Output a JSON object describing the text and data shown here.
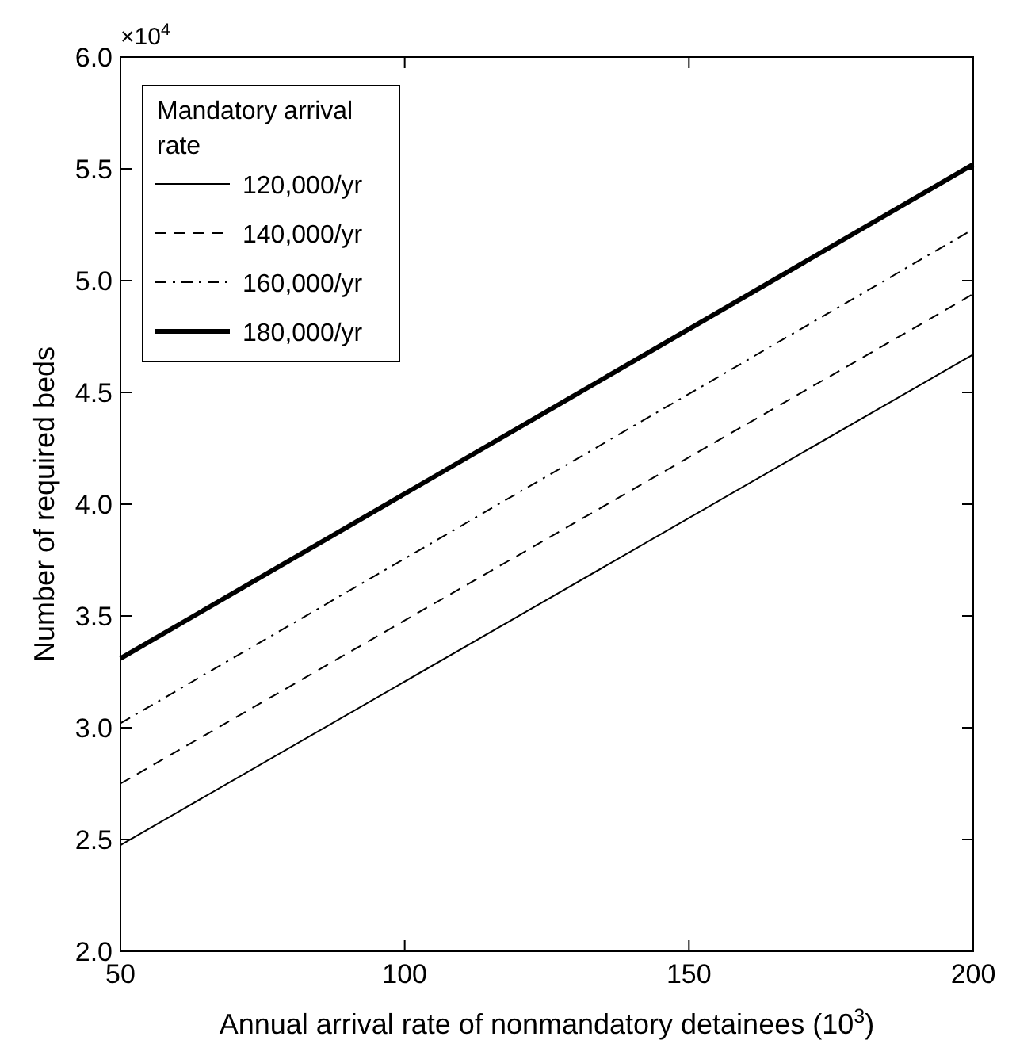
{
  "chart_data": {
    "type": "line",
    "xlabel": "Annual arrival rate of nonmandatory detainees (10$^{3}$)",
    "ylabel": "Number of required beds",
    "annotations": [
      "×10$^{4}$"
    ],
    "legend_title": "Mandatory arrival rate",
    "legend": "top left",
    "grid": false,
    "xlim": [
      50,
      200
    ],
    "xticks": [
      50,
      100,
      150,
      200
    ],
    "ylim": [
      2,
      6
    ],
    "yticks": [
      {
        "value": 2,
        "label": "2.0"
      },
      2.5,
      {
        "value": 3,
        "label": "3.0"
      },
      3.5,
      {
        "value": 4,
        "label": "4.0"
      },
      4.5,
      {
        "value": 5,
        "label": "5.0"
      },
      5.5,
      {
        "value": 6,
        "label": "6.0"
      }
    ],
    "x": [
      50,
      200
    ],
    "series": [
      {
        "name": "120,000/yr",
        "color": "#000000",
        "line_style": "solid",
        "values": [
          2.475,
          4.67
        ]
      },
      {
        "name": "140,000/yr",
        "color": "#000000",
        "line_style": "dashed",
        "values": [
          2.75,
          4.94
        ]
      },
      {
        "name": "160,000/yr",
        "color": "#000000",
        "line_style": "dashdot",
        "values": [
          3.02,
          5.23
        ]
      },
      {
        "name": "180,000/yr",
        "color": "#000000",
        "line_style": "solid",
        "values": [
          3.31,
          5.52
        ]
      }
    ]
  }
}
